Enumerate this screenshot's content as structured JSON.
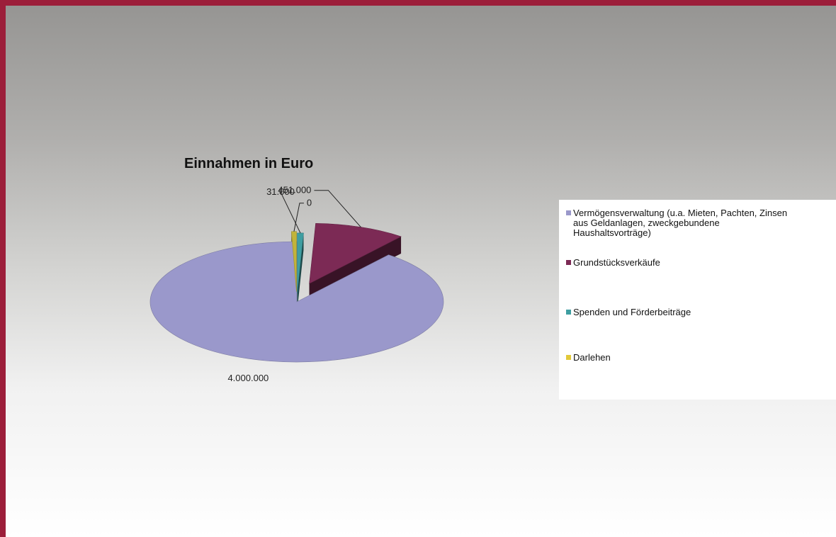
{
  "chart_data": {
    "type": "pie",
    "title": "Einnahmen in Euro",
    "categories": [
      "Vermögensverwaltung (u.a. Mieten, Pachten, Zinsen aus Geldanlagen, zweckgebundene Haushaltsvorträge)",
      "Grundstücksverkäufe",
      "Spenden und Förderbeiträge",
      "Darlehen"
    ],
    "values": [
      4000000,
      451000,
      31000,
      0
    ],
    "data_labels": [
      "4.000.000",
      "451.000",
      "31.000",
      "0"
    ],
    "colors": [
      "#9a98cb",
      "#7c2a55",
      "#3f9ea1",
      "#c2b43a"
    ],
    "legend_position": "right",
    "exploded": true,
    "style": "3d"
  },
  "legend": {
    "items": [
      {
        "lines": [
          "Vermögensverwaltung (u.a. Mieten, Pachten, Zinsen",
          "aus Geldanlagen, zweckgebundene",
          "Haushaltsvorträge)"
        ],
        "color": "#9a98cb"
      },
      {
        "lines": [
          "Grundstücksverkäufe"
        ],
        "color": "#7c2a55"
      },
      {
        "lines": [
          "Spenden und Förderbeiträge"
        ],
        "color": "#3f9ea1"
      },
      {
        "lines": [
          "Darlehen"
        ],
        "color": "#e2c93a"
      }
    ]
  }
}
